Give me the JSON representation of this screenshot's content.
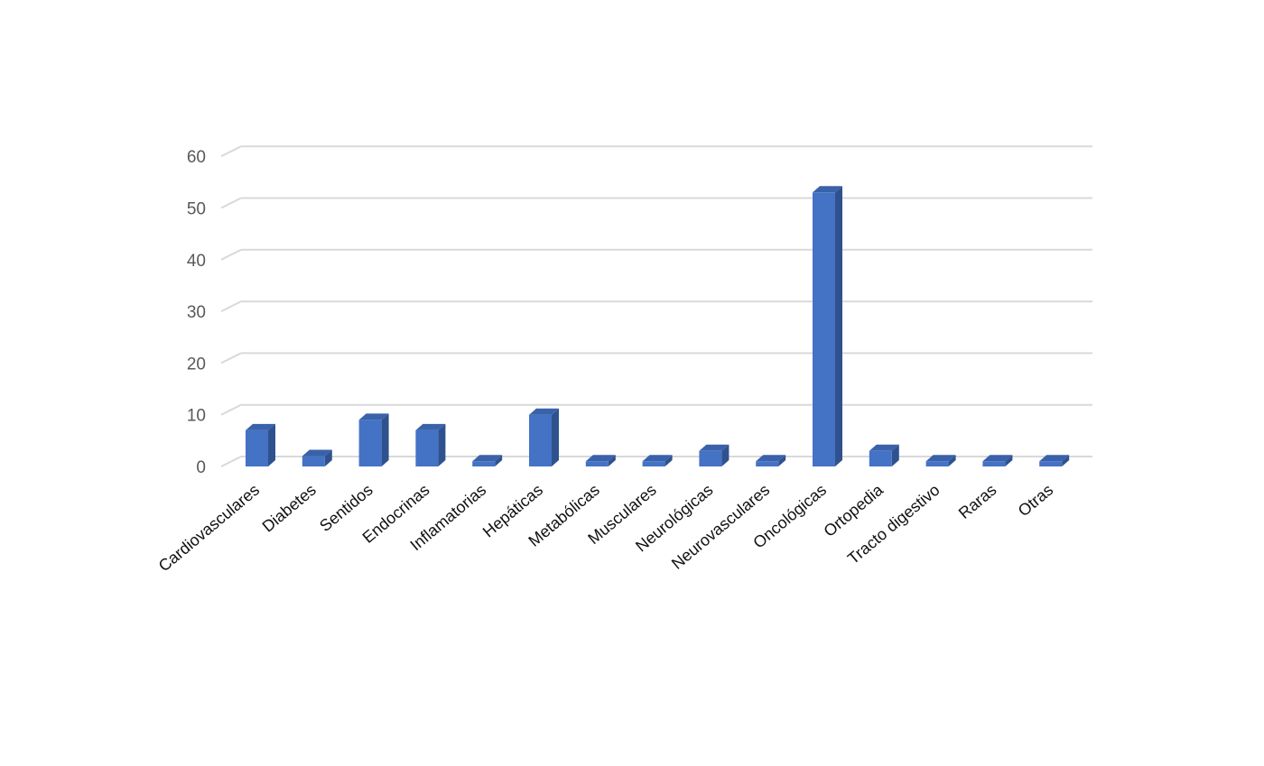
{
  "chart_data": {
    "type": "bar",
    "style": "3d-column",
    "title": "",
    "xlabel": "",
    "ylabel": "",
    "ylim": [
      0,
      60
    ],
    "yticks": [
      0,
      10,
      20,
      30,
      40,
      50,
      60
    ],
    "grid": true,
    "legend": "none",
    "categories": [
      "Cardiovasculares",
      "Diabetes",
      "Sentidos",
      "Endocrinas",
      "Inflamatorias",
      "Hepáticas",
      "Metabólicas",
      "Musculares",
      "Neurológicas",
      "Neurovasculares",
      "Oncológicas",
      "Ortopedia",
      "Tracto digestivo",
      "Raras",
      "Otras"
    ],
    "values": [
      7,
      2,
      9,
      7,
      1,
      10,
      1,
      1,
      3,
      1,
      53,
      3,
      1,
      1,
      1
    ],
    "colors": {
      "bar_front": "#4472C4",
      "bar_side": "#2F528F",
      "bar_top": "#3A62AA",
      "grid": "#D9D9D9"
    }
  }
}
